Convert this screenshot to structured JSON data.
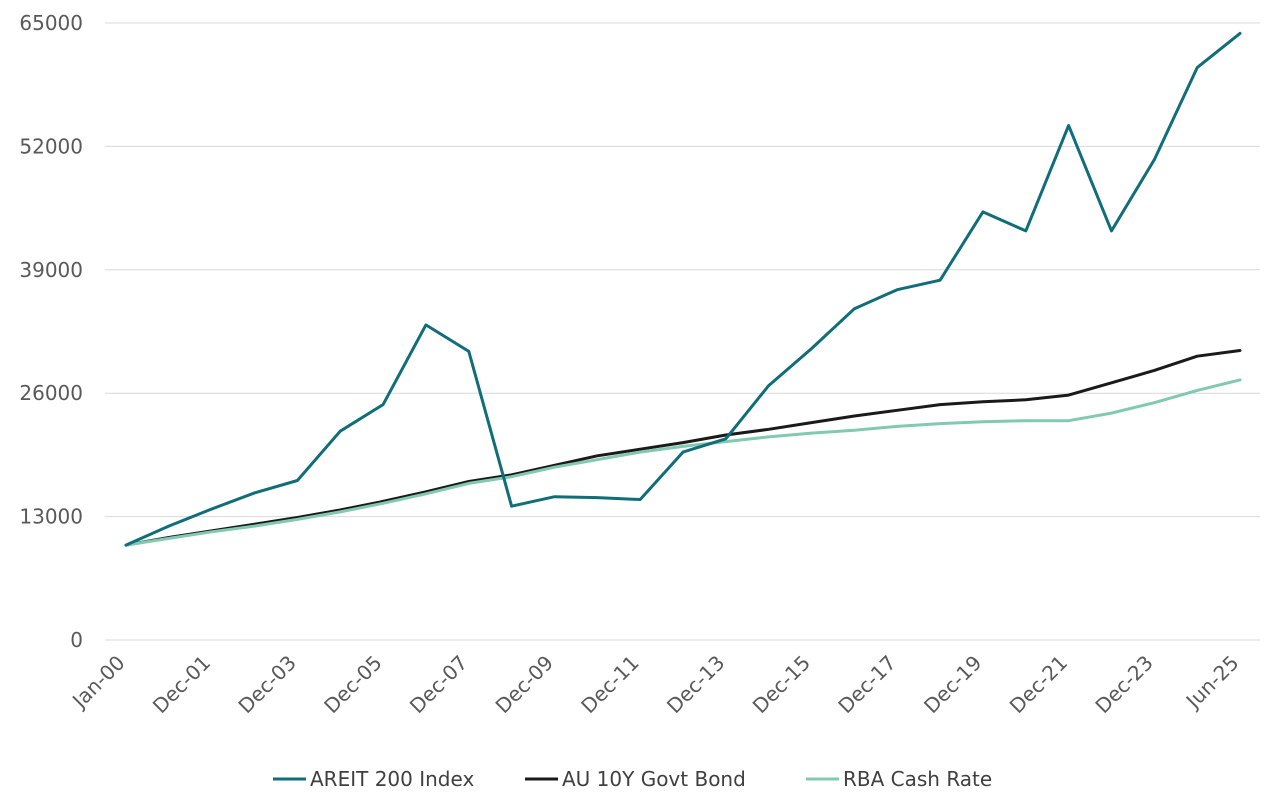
{
  "chart_data": {
    "type": "line",
    "title": "",
    "xlabel": "",
    "ylabel": "",
    "ylim": [
      0,
      65000
    ],
    "yticks": [
      "0",
      "13000",
      "26000",
      "39000",
      "52000",
      "65000"
    ],
    "ytick_values": [
      0,
      13000,
      26000,
      39000,
      52000,
      65000
    ],
    "xtick_labels": [
      "Jan-00",
      "Dec-01",
      "Dec-03",
      "Dec-05",
      "Dec-07",
      "Dec-09",
      "Dec-11",
      "Dec-13",
      "Dec-15",
      "Dec-17",
      "Dec-19",
      "Dec-21",
      "Dec-23",
      "Jun-25"
    ],
    "x": [
      "Jan-00",
      "Dec-00",
      "Dec-01",
      "Dec-02",
      "Dec-03",
      "Dec-04",
      "Dec-05",
      "Dec-06",
      "Dec-07",
      "Dec-08",
      "Dec-09",
      "Dec-10",
      "Dec-11",
      "Dec-12",
      "Dec-13",
      "Dec-14",
      "Dec-15",
      "Dec-16",
      "Dec-17",
      "Dec-18",
      "Dec-19",
      "Dec-20",
      "Dec-21",
      "Dec-22",
      "Dec-23",
      "Dec-24",
      "Jun-25"
    ],
    "grid": true,
    "legend_position": "bottom",
    "series": [
      {
        "name": "AREIT 200 Index",
        "color": "#0f6e78",
        "values": [
          10000,
          12000,
          13800,
          15500,
          16800,
          22000,
          24800,
          33200,
          30400,
          14100,
          15100,
          15000,
          14800,
          19800,
          21200,
          26800,
          30700,
          34900,
          36900,
          37900,
          45100,
          43100,
          54200,
          43100,
          50600,
          60300,
          63900
        ]
      },
      {
        "name": "AU 10Y Govt Bond",
        "color": "#1a1a1a",
        "values": [
          10000,
          10800,
          11500,
          12200,
          12900,
          13700,
          14600,
          15600,
          16700,
          17400,
          18400,
          19400,
          20100,
          20800,
          21600,
          22200,
          22900,
          23600,
          24200,
          24800,
          25100,
          25300,
          25800,
          27100,
          28400,
          29900,
          30500
        ]
      },
      {
        "name": "RBA Cash Rate",
        "color": "#82c9b1",
        "values": [
          10000,
          10700,
          11400,
          12000,
          12700,
          13500,
          14400,
          15400,
          16500,
          17200,
          18200,
          19000,
          19800,
          20400,
          20900,
          21400,
          21800,
          22100,
          22500,
          22800,
          23000,
          23100,
          23100,
          23900,
          25000,
          26300,
          27400
        ]
      }
    ]
  }
}
